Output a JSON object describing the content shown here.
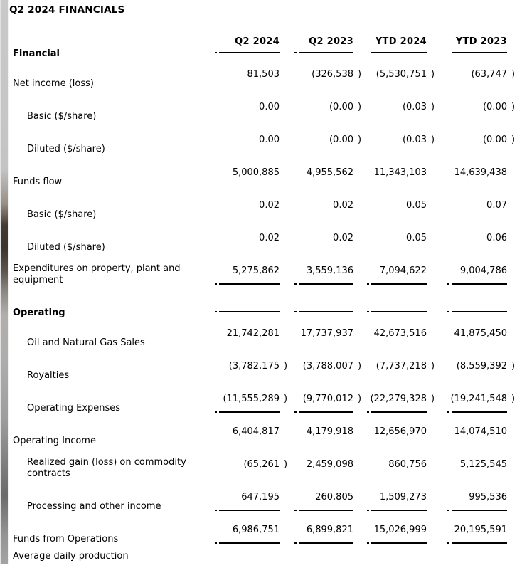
{
  "page": {
    "title": "Q2 2024 FINANCIALS"
  },
  "table": {
    "row_header_label": "Financial",
    "columns": [
      "Q2 2024",
      "Q2 2023",
      "YTD 2024",
      "YTD 2023"
    ],
    "rows": [
      {
        "label": "Net income (loss)",
        "indent": 0,
        "values": [
          "81,503",
          "(326,538 )",
          "(5,530,751 )",
          "(63,747 )"
        ]
      },
      {
        "label": "Basic ($/share)",
        "indent": 1,
        "values": [
          "0.00",
          "(0.00 )",
          "(0.03 )",
          "(0.00 )"
        ]
      },
      {
        "label": "Diluted ($/share)",
        "indent": 1,
        "values": [
          "0.00",
          "(0.00 )",
          "(0.03 )",
          "(0.00 )"
        ]
      },
      {
        "label": "Funds flow",
        "indent": 0,
        "values": [
          "5,000,885",
          "4,955,562",
          "11,343,103",
          "14,639,438"
        ]
      },
      {
        "label": "Basic ($/share)",
        "indent": 1,
        "values": [
          "0.02",
          "0.02",
          "0.05",
          "0.07"
        ]
      },
      {
        "label": "Diluted ($/share)",
        "indent": 1,
        "values": [
          "0.02",
          "0.02",
          "0.05",
          "0.06"
        ]
      },
      {
        "label": "Expenditures on property, plant and equipment",
        "indent": 0,
        "underline": true,
        "values": [
          "5,275,862",
          "3,559,136",
          "7,094,622",
          "9,004,786"
        ]
      },
      {
        "label": "Operating",
        "indent": 0,
        "section": true,
        "values": [
          "",
          "",
          "",
          ""
        ]
      },
      {
        "label": "Oil and Natural Gas Sales",
        "indent": 1,
        "values": [
          "21,742,281",
          "17,737,937",
          "42,673,516",
          "41,875,450"
        ]
      },
      {
        "label": "Royalties",
        "indent": 1,
        "values": [
          "(3,782,175 )",
          "(3,788,007 )",
          "(7,737,218 )",
          "(8,559,392 )"
        ]
      },
      {
        "label": "Operating Expenses",
        "indent": 1,
        "underline": true,
        "values": [
          "(11,555,289 )",
          "(9,770,012 )",
          "(22,279,328 )",
          "(19,241,548 )"
        ]
      },
      {
        "label": "Operating Income",
        "indent": 0,
        "values": [
          "6,404,817",
          "4,179,918",
          "12,656,970",
          "14,074,510"
        ]
      },
      {
        "label": "Realized gain (loss) on commodity contracts",
        "indent": 1,
        "values": [
          "(65,261 )",
          "2,459,098",
          "860,756",
          "5,125,545"
        ]
      },
      {
        "label": "Processing and other income",
        "indent": 1,
        "underline": true,
        "values": [
          "647,195",
          "260,805",
          "1,509,273",
          "995,536"
        ]
      },
      {
        "label": "Funds from Operations",
        "indent": 0,
        "underline": true,
        "values": [
          "6,986,751",
          "6,899,821",
          "15,026,999",
          "20,195,591"
        ]
      },
      {
        "label": "Average daily production",
        "indent": 0,
        "compact": true,
        "values": [
          "",
          "",
          "",
          ""
        ]
      }
    ]
  }
}
